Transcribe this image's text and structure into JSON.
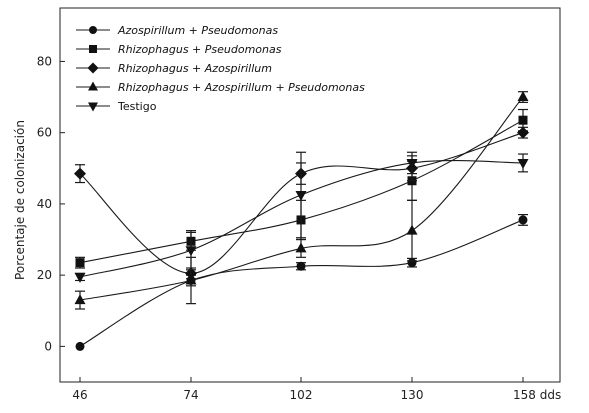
{
  "chart_data": {
    "type": "line",
    "categories": [
      "46",
      "74",
      "102",
      "130",
      "158 dds"
    ],
    "x": [
      46,
      74,
      102,
      130,
      158
    ],
    "ylabel": "Porcentaje de colonización",
    "xlabel": "",
    "ylim": [
      -10,
      95
    ],
    "yticks": [
      0,
      20,
      40,
      60,
      80
    ],
    "legend_position": "top-left",
    "series": [
      {
        "name": "Azospirillum + Pseudomonas",
        "marker": "circle",
        "values": [
          0,
          18.5,
          22.5,
          23.5,
          35.5
        ],
        "errors": [
          0,
          1.5,
          1.0,
          1.2,
          1.5
        ]
      },
      {
        "name": "Rhizophagus + Pseudomonas",
        "marker": "square",
        "values": [
          23.5,
          29.5,
          35.5,
          46.5,
          63.5
        ],
        "errors": [
          1.5,
          2.5,
          5.5,
          5.5,
          3.0
        ]
      },
      {
        "name": "Rhizophagus + Azospirillum",
        "marker": "diamond",
        "values": [
          48.5,
          20.5,
          48.5,
          50.0,
          60.0
        ],
        "errors": [
          2.5,
          1.5,
          3.0,
          3.5,
          1.5
        ]
      },
      {
        "name": "Rhizophagus + Azospirillum + Pseudomonas",
        "marker": "triangle-up",
        "values": [
          13.0,
          18.5,
          27.5,
          32.5,
          70.0
        ],
        "errors": [
          2.5,
          6.5,
          2.5,
          8.5,
          1.5
        ]
      },
      {
        "name": "Testigo",
        "marker": "triangle-down",
        "values": [
          19.5,
          27.0,
          42.5,
          51.5,
          51.5
        ],
        "errors": [
          1.0,
          5.5,
          12.0,
          3.0,
          2.5
        ]
      }
    ],
    "legend_italic": [
      true,
      true,
      true,
      true,
      false
    ]
  }
}
